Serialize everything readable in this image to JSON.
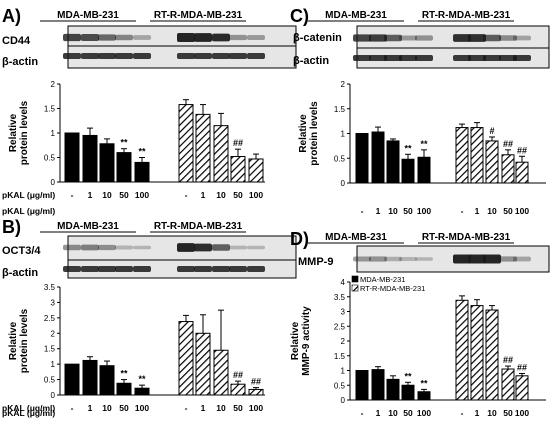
{
  "figure": {
    "colors": {
      "mda": "#000000",
      "rtr": "#ffffff",
      "hatch": "#000000",
      "blot_bg": "#e6e6e6",
      "band": "#1a1a1a"
    },
    "dose_header": "pKAL (μg/ml)",
    "dose_labels": [
      "-",
      "1",
      "10",
      "50",
      "100",
      "-",
      "1",
      "10",
      "50",
      "100"
    ]
  },
  "chart_data": [
    {
      "panel": "A)",
      "type": "bar",
      "group_labels": [
        "MDA-MB-231",
        "RT-R-MDA-MB-231"
      ],
      "blot_labels": [
        "CD44",
        "β-actin"
      ],
      "ylabel": [
        "Relative",
        "protein levels"
      ],
      "ylim": [
        0,
        2
      ],
      "yticks": [
        "0",
        "0.5",
        "1",
        "1.5",
        "2"
      ],
      "series": [
        {
          "values": [
            1.0,
            0.95,
            0.78,
            0.6,
            0.4
          ],
          "errors": [
            0.0,
            0.15,
            0.1,
            0.08,
            0.1
          ],
          "marks": [
            "",
            "",
            "",
            "**",
            "**"
          ]
        },
        {
          "values": [
            1.58,
            1.38,
            1.15,
            0.52,
            0.47
          ],
          "errors": [
            0.1,
            0.2,
            0.25,
            0.15,
            0.1
          ],
          "marks": [
            "",
            "",
            "",
            "##",
            ""
          ]
        }
      ]
    },
    {
      "panel": "C)",
      "type": "bar",
      "group_labels": [
        "MDA-MB-231",
        "RT-R-MDA-MB-231"
      ],
      "blot_labels": [
        "β-catenin",
        "β-actin"
      ],
      "ylabel": [
        "Relative",
        "protein levels"
      ],
      "ylim": [
        0,
        2
      ],
      "yticks": [
        "0",
        "0.5",
        "1",
        "1.5",
        "2"
      ],
      "series": [
        {
          "values": [
            1.0,
            1.03,
            0.85,
            0.48,
            0.52
          ],
          "errors": [
            0.0,
            0.1,
            0.04,
            0.1,
            0.15
          ],
          "marks": [
            "",
            "",
            "",
            "**",
            "**"
          ]
        },
        {
          "values": [
            1.12,
            1.12,
            0.85,
            0.57,
            0.42
          ],
          "errors": [
            0.07,
            0.1,
            0.08,
            0.1,
            0.12
          ],
          "marks": [
            "",
            "",
            "#",
            "##",
            "##"
          ]
        }
      ]
    },
    {
      "panel": "B)",
      "type": "bar",
      "group_labels": [
        "MDA-MB-231",
        "RT-R-MDA-MB-231"
      ],
      "blot_labels": [
        "OCT3/4",
        "β-actin"
      ],
      "ylabel": [
        "Relative",
        "protein levels"
      ],
      "ylim": [
        0,
        3.5
      ],
      "yticks": [
        "0",
        "0.5",
        "1",
        "1.5",
        "2",
        "2.5",
        "3",
        "3.5"
      ],
      "series": [
        {
          "values": [
            1.0,
            1.12,
            0.95,
            0.38,
            0.22
          ],
          "errors": [
            0.0,
            0.12,
            0.15,
            0.12,
            0.1
          ],
          "marks": [
            "",
            "",
            "",
            "**",
            "**"
          ]
        },
        {
          "values": [
            2.38,
            2.0,
            1.45,
            0.35,
            0.18
          ],
          "errors": [
            0.2,
            0.6,
            1.3,
            0.1,
            0.06
          ],
          "marks": [
            "",
            "",
            "",
            "##",
            "##"
          ]
        }
      ]
    },
    {
      "panel": "D)",
      "type": "bar",
      "group_labels": [
        "MDA-MB-231",
        "RT-R-MDA-MB-231"
      ],
      "blot_labels": [
        "MMP-9"
      ],
      "ylabel": [
        "Relative",
        "MMP-9 activity"
      ],
      "legend": [
        "MDA-MB-231",
        "RT-R-MDA-MB-231"
      ],
      "ylim": [
        0,
        4
      ],
      "yticks": [
        "0",
        "0.5",
        "1",
        "1.5",
        "2",
        "2.5",
        "3",
        "3.5",
        "4"
      ],
      "series": [
        {
          "values": [
            1.0,
            1.03,
            0.7,
            0.5,
            0.28
          ],
          "errors": [
            0.0,
            0.1,
            0.12,
            0.1,
            0.08
          ],
          "marks": [
            "",
            "",
            "",
            "**",
            "**"
          ]
        },
        {
          "values": [
            3.38,
            3.2,
            3.05,
            1.05,
            0.82
          ],
          "errors": [
            0.15,
            0.2,
            0.15,
            0.1,
            0.08
          ],
          "marks": [
            "",
            "",
            "",
            "##",
            "##"
          ]
        }
      ]
    }
  ]
}
